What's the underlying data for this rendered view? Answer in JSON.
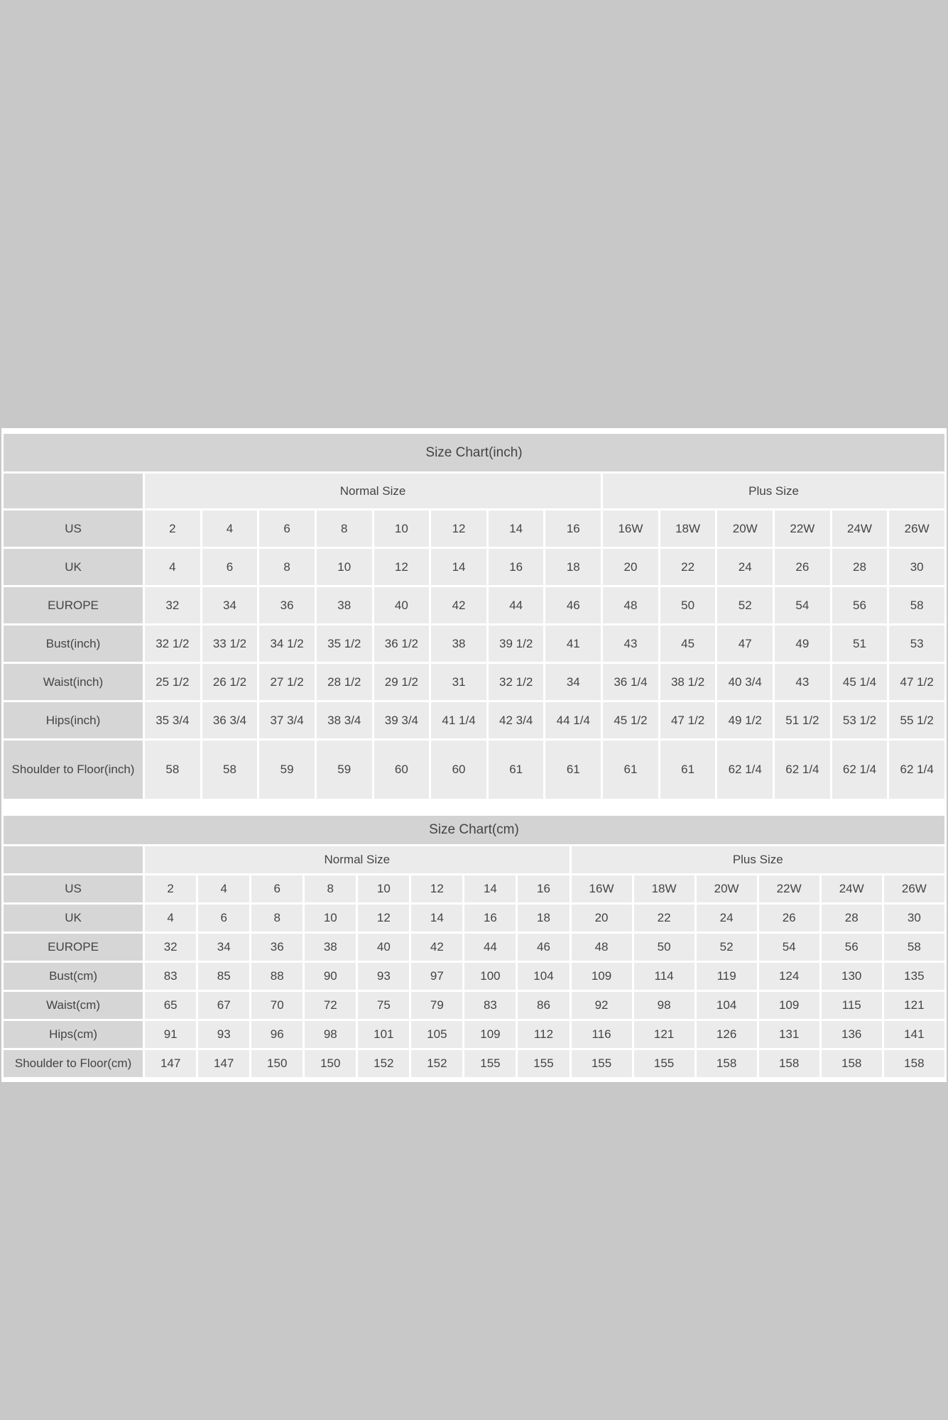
{
  "inch_chart": {
    "title": "Size Chart(inch)",
    "groups": [
      "Normal Size",
      "Plus Size"
    ],
    "rows": [
      {
        "label": "US",
        "values": [
          "2",
          "4",
          "6",
          "8",
          "10",
          "12",
          "14",
          "16",
          "16W",
          "18W",
          "20W",
          "22W",
          "24W",
          "26W"
        ]
      },
      {
        "label": "UK",
        "values": [
          "4",
          "6",
          "8",
          "10",
          "12",
          "14",
          "16",
          "18",
          "20",
          "22",
          "24",
          "26",
          "28",
          "30"
        ]
      },
      {
        "label": "EUROPE",
        "values": [
          "32",
          "34",
          "36",
          "38",
          "40",
          "42",
          "44",
          "46",
          "48",
          "50",
          "52",
          "54",
          "56",
          "58"
        ]
      },
      {
        "label": "Bust(inch)",
        "values": [
          "32 1/2",
          "33 1/2",
          "34 1/2",
          "35 1/2",
          "36 1/2",
          "38",
          "39 1/2",
          "41",
          "43",
          "45",
          "47",
          "49",
          "51",
          "53"
        ]
      },
      {
        "label": "Waist(inch)",
        "values": [
          "25 1/2",
          "26 1/2",
          "27 1/2",
          "28 1/2",
          "29 1/2",
          "31",
          "32 1/2",
          "34",
          "36 1/4",
          "38 1/2",
          "40 3/4",
          "43",
          "45 1/4",
          "47 1/2"
        ]
      },
      {
        "label": "Hips(inch)",
        "values": [
          "35 3/4",
          "36 3/4",
          "37 3/4",
          "38 3/4",
          "39 3/4",
          "41 1/4",
          "42 3/4",
          "44 1/4",
          "45 1/2",
          "47 1/2",
          "49 1/2",
          "51 1/2",
          "53 1/2",
          "55 1/2"
        ]
      },
      {
        "label": "Shoulder to Floor(inch)",
        "values": [
          "58",
          "58",
          "59",
          "59",
          "60",
          "60",
          "61",
          "61",
          "61",
          "61",
          "62 1/4",
          "62 1/4",
          "62 1/4",
          "62 1/4"
        ]
      }
    ]
  },
  "cm_chart": {
    "title": "Size Chart(cm)",
    "groups": [
      "Normal Size",
      "Plus Size"
    ],
    "rows": [
      {
        "label": "US",
        "values": [
          "2",
          "4",
          "6",
          "8",
          "10",
          "12",
          "14",
          "16",
          "16W",
          "18W",
          "20W",
          "22W",
          "24W",
          "26W"
        ]
      },
      {
        "label": "UK",
        "values": [
          "4",
          "6",
          "8",
          "10",
          "12",
          "14",
          "16",
          "18",
          "20",
          "22",
          "24",
          "26",
          "28",
          "30"
        ]
      },
      {
        "label": "EUROPE",
        "values": [
          "32",
          "34",
          "36",
          "38",
          "40",
          "42",
          "44",
          "46",
          "48",
          "50",
          "52",
          "54",
          "56",
          "58"
        ]
      },
      {
        "label": "Bust(cm)",
        "values": [
          "83",
          "85",
          "88",
          "90",
          "93",
          "97",
          "100",
          "104",
          "109",
          "114",
          "119",
          "124",
          "130",
          "135"
        ]
      },
      {
        "label": "Waist(cm)",
        "values": [
          "65",
          "67",
          "70",
          "72",
          "75",
          "79",
          "83",
          "86",
          "92",
          "98",
          "104",
          "109",
          "115",
          "121"
        ]
      },
      {
        "label": "Hips(cm)",
        "values": [
          "91",
          "93",
          "96",
          "98",
          "101",
          "105",
          "109",
          "112",
          "116",
          "121",
          "126",
          "131",
          "136",
          "141"
        ]
      },
      {
        "label": "Shoulder to Floor(cm)",
        "values": [
          "147",
          "147",
          "150",
          "150",
          "152",
          "152",
          "155",
          "155",
          "155",
          "155",
          "158",
          "158",
          "158",
          "158"
        ]
      }
    ]
  },
  "colors": {
    "background": "#c8c8c8",
    "title_cell": "#d3d3d3",
    "label_cell": "#d6d6d6",
    "data_cell": "#ebebeb",
    "text": "#444444"
  }
}
